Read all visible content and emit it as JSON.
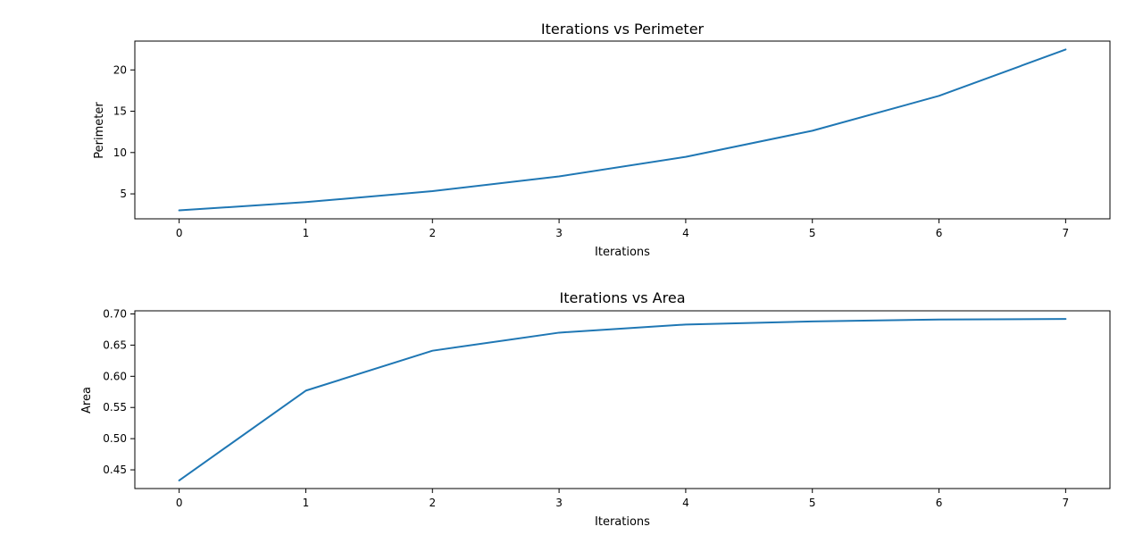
{
  "chart_data": [
    {
      "type": "line",
      "title": "Iterations vs Perimeter",
      "xlabel": "Iterations",
      "ylabel": "Perimeter",
      "x": [
        0,
        1,
        2,
        3,
        4,
        5,
        6,
        7
      ],
      "series": [
        {
          "values": [
            3.0,
            4.0,
            5.33,
            7.11,
            9.48,
            12.64,
            16.86,
            22.47
          ],
          "color": "#1f77b4"
        }
      ],
      "xlim": [
        -0.35,
        7.35
      ],
      "ylim": [
        1.98,
        23.49
      ],
      "xticks": [
        0,
        1,
        2,
        3,
        4,
        5,
        6,
        7
      ],
      "xtick_labels": [
        "0",
        "1",
        "2",
        "3",
        "4",
        "5",
        "6",
        "7"
      ],
      "yticks": [
        5,
        10,
        15,
        20
      ],
      "ytick_labels": [
        "5",
        "10",
        "15",
        "20"
      ],
      "grid": false,
      "legend": "none"
    },
    {
      "type": "line",
      "title": "Iterations vs Area",
      "xlabel": "Iterations",
      "ylabel": "Area",
      "x": [
        0,
        1,
        2,
        3,
        4,
        5,
        6,
        7
      ],
      "series": [
        {
          "values": [
            0.433,
            0.577,
            0.641,
            0.67,
            0.683,
            0.688,
            0.691,
            0.692
          ],
          "color": "#1f77b4"
        }
      ],
      "xlim": [
        -0.35,
        7.35
      ],
      "ylim": [
        0.42,
        0.705
      ],
      "xticks": [
        0,
        1,
        2,
        3,
        4,
        5,
        6,
        7
      ],
      "xtick_labels": [
        "0",
        "1",
        "2",
        "3",
        "4",
        "5",
        "6",
        "7"
      ],
      "yticks": [
        0.45,
        0.5,
        0.55,
        0.6,
        0.65,
        0.7
      ],
      "ytick_labels": [
        "0.45",
        "0.50",
        "0.55",
        "0.60",
        "0.65",
        "0.70"
      ],
      "grid": false,
      "legend": "none"
    }
  ]
}
